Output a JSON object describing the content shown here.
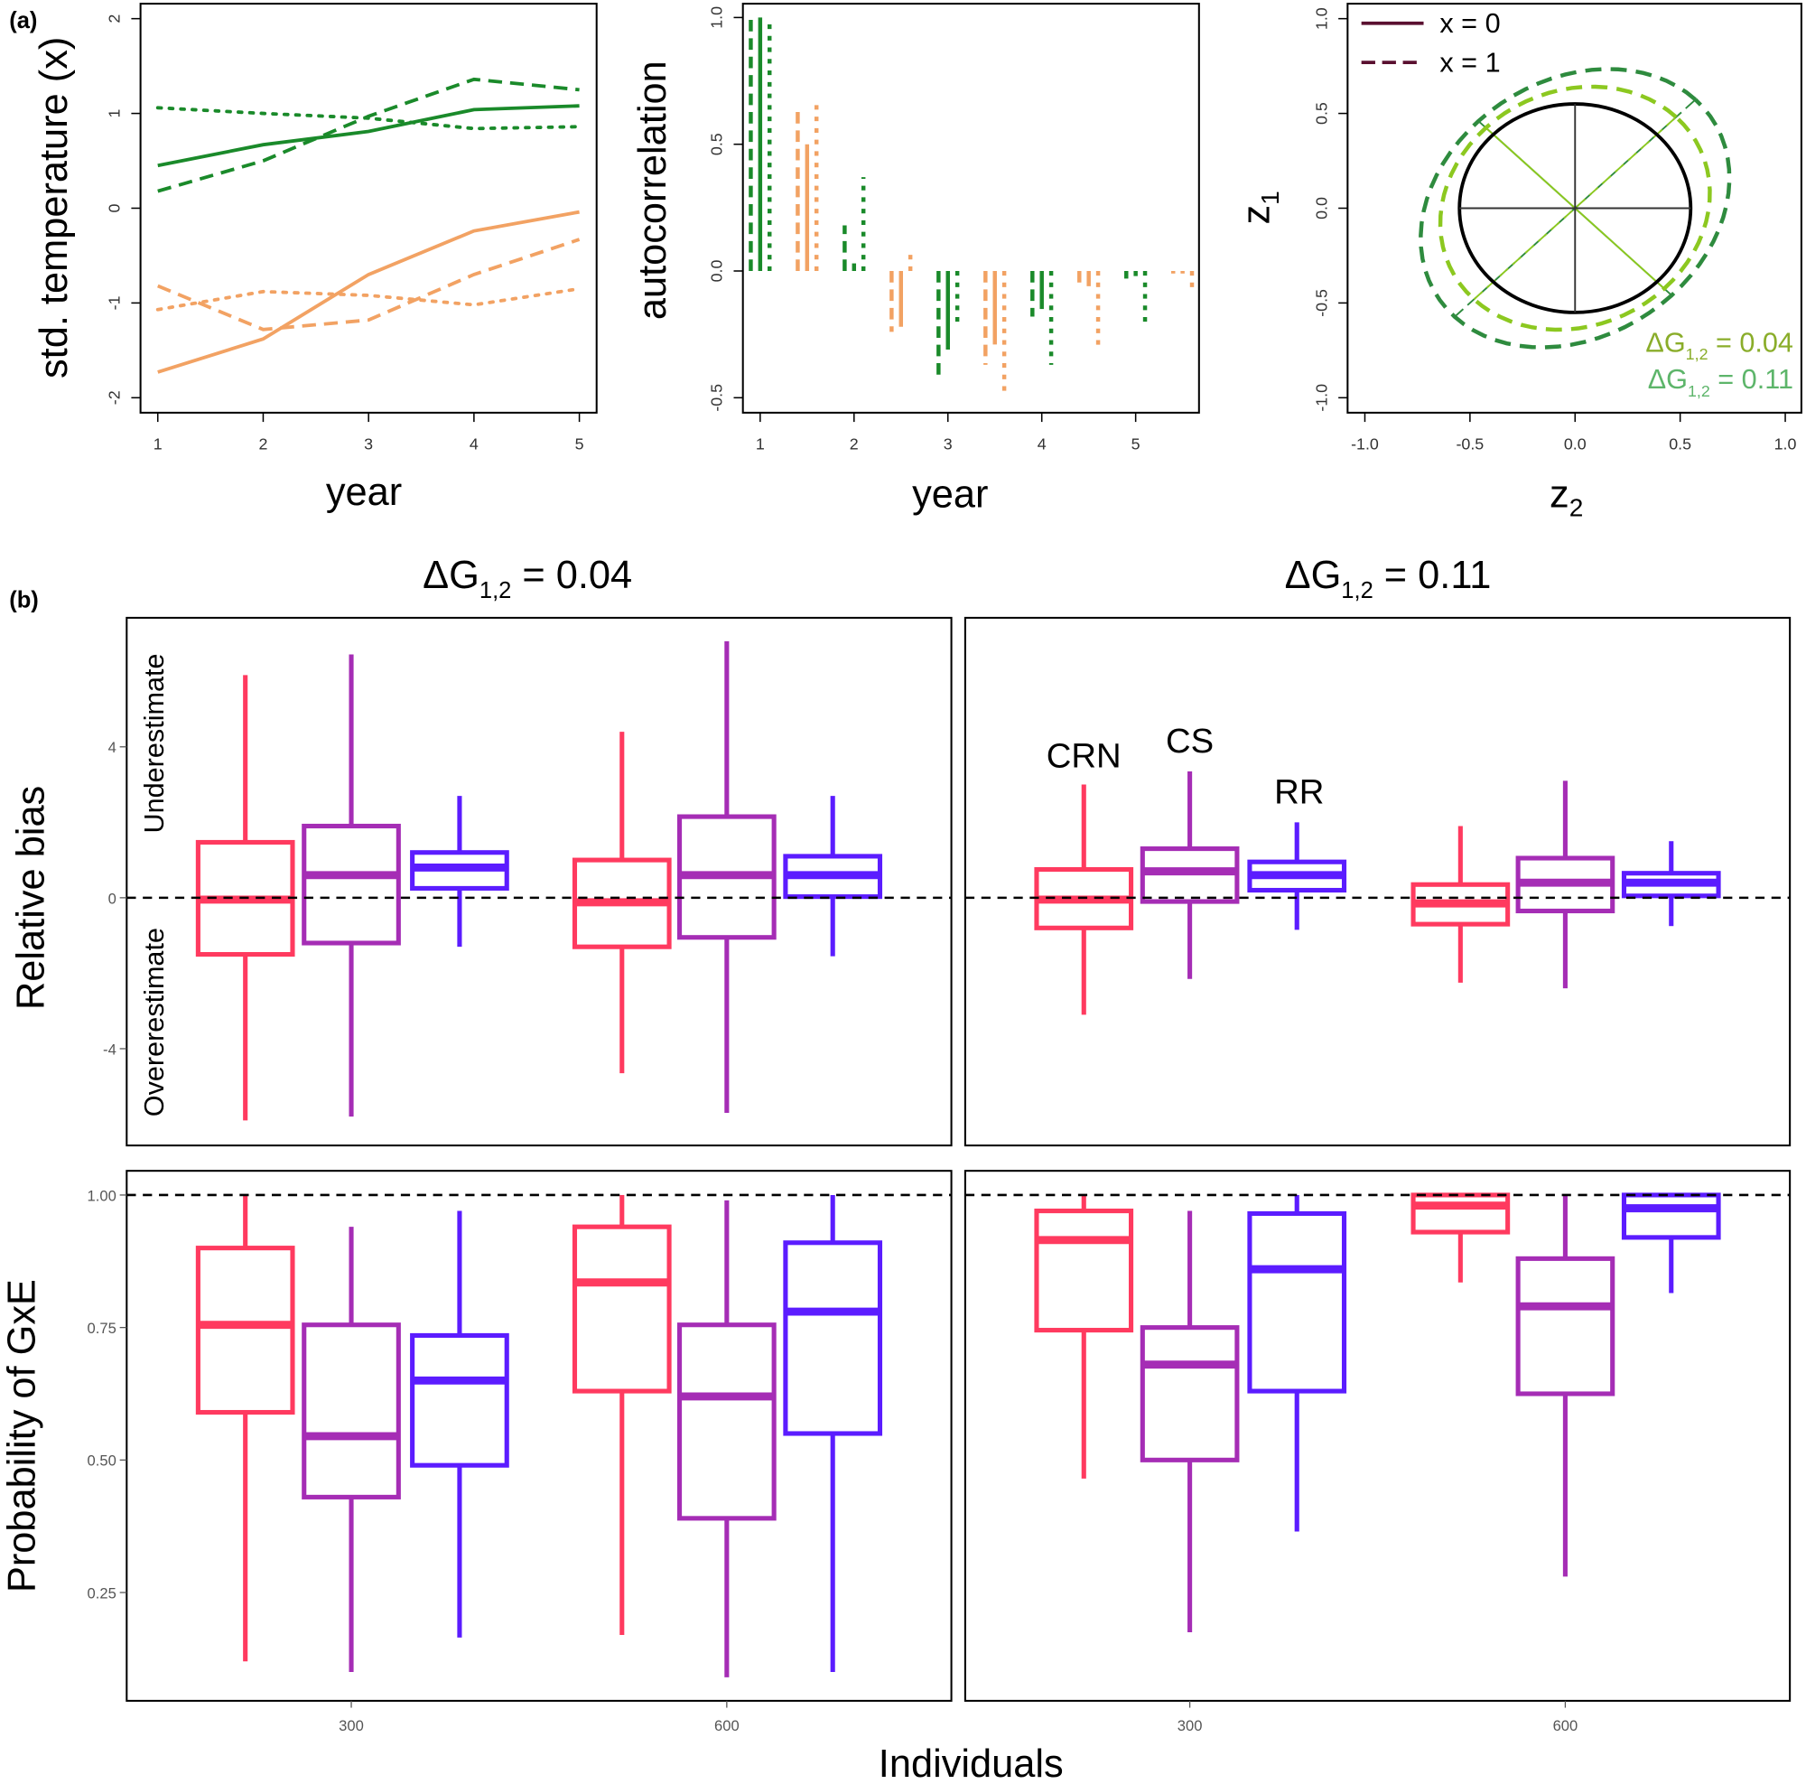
{
  "figure": {
    "panel_a_label": "(a)",
    "panel_b_label": "(b)"
  },
  "colors": {
    "warm": "#1a8a2a",
    "cold": "#f2a263",
    "CRN": "#ff3a5f",
    "CS": "#a52db5",
    "RR": "#5b1cff",
    "dG_004": "#8cc820",
    "dG_011": "#2e8b3e",
    "dG_004_text": "#8aad2a",
    "dG_011_text": "#5db56a",
    "legend_line": "#5a1030"
  },
  "chart_data": [
    {
      "type": "line",
      "ylabel": "std. temperature (x)",
      "xlabel": "year",
      "x": [
        1,
        2,
        3,
        4,
        5
      ],
      "xticks": [
        "1",
        "2",
        "3",
        "4",
        "5"
      ],
      "yticks": [
        "-2",
        "-1",
        "0",
        "1",
        "2"
      ],
      "ylim": [
        -2.25,
        2.2
      ],
      "series": [
        {
          "color": "warm",
          "linestyle": "solid",
          "values": [
            0.45,
            0.67,
            0.81,
            1.04,
            1.08
          ]
        },
        {
          "color": "warm",
          "linestyle": "dashed",
          "values": [
            0.18,
            0.5,
            0.97,
            1.36,
            1.25
          ]
        },
        {
          "color": "warm",
          "linestyle": "dotted",
          "values": [
            1.06,
            1.0,
            0.95,
            0.84,
            0.86
          ]
        },
        {
          "color": "cold",
          "linestyle": "solid",
          "values": [
            -1.73,
            -1.38,
            -0.7,
            -0.24,
            -0.04
          ]
        },
        {
          "color": "cold",
          "linestyle": "dashed",
          "values": [
            -0.82,
            -1.28,
            -1.18,
            -0.7,
            -0.33
          ]
        },
        {
          "color": "cold",
          "linestyle": "dotted",
          "values": [
            -1.07,
            -0.88,
            -0.92,
            -1.02,
            -0.85
          ]
        }
      ]
    },
    {
      "type": "bar",
      "ylabel": "autocorrelation",
      "xlabel": "year",
      "xticks": [
        "1",
        "2",
        "3",
        "4",
        "5"
      ],
      "yticks": [
        "-0.5",
        "0.0",
        "0.5",
        "1.0"
      ],
      "ylim": [
        -0.55,
        1.05
      ],
      "xlim": [
        0.82,
        5.68
      ],
      "lags": [
        {
          "x": 1.0,
          "color": "warm",
          "dashed": 1.0,
          "solid": 1.0,
          "dotted": 1.0
        },
        {
          "x": 1.5,
          "color": "cold",
          "dashed": 0.65,
          "solid": 0.5,
          "dotted": 0.67
        },
        {
          "x": 2.0,
          "color": "warm",
          "dashed": 0.18,
          "solid": 0.03,
          "dotted": 0.37
        },
        {
          "x": 2.5,
          "color": "cold",
          "dashed": -0.24,
          "solid": -0.22,
          "dotted": 0.08
        },
        {
          "x": 3.0,
          "color": "warm",
          "dashed": -0.41,
          "solid": -0.31,
          "dotted": -0.2
        },
        {
          "x": 3.5,
          "color": "cold",
          "dashed": -0.37,
          "solid": -0.29,
          "dotted": -0.49
        },
        {
          "x": 4.0,
          "color": "warm",
          "dashed": -0.18,
          "solid": -0.15,
          "dotted": -0.37
        },
        {
          "x": 4.5,
          "color": "cold",
          "dashed": -0.06,
          "solid": -0.06,
          "dotted": -0.31
        },
        {
          "x": 5.0,
          "color": "warm",
          "dashed": -0.03,
          "solid": -0.02,
          "dotted": -0.2
        },
        {
          "x": 5.5,
          "color": "cold",
          "dashed": -0.01,
          "solid": -0.01,
          "dotted": -0.08
        }
      ]
    },
    {
      "type": "scatter",
      "ylabel_main": "z",
      "ylabel_sub": "1",
      "xlabel_main": "z",
      "xlabel_sub": "2",
      "xticks": [
        "-1.0",
        "-0.5",
        "0.0",
        "0.5",
        "1.0"
      ],
      "yticks": [
        "-1.0",
        "-0.5",
        "0.0",
        "0.5",
        "1.0"
      ],
      "xlim": [
        -1.0,
        1.0
      ],
      "ylim": [
        -1.0,
        1.0
      ],
      "legend": [
        {
          "label": "x = 0",
          "linestyle": "solid"
        },
        {
          "label": "x = 1",
          "linestyle": "dashed"
        }
      ],
      "reference_circle": {
        "radius": 0.55
      },
      "ellipses": [
        {
          "color": "dG_011",
          "major": 0.81,
          "minor": 0.65,
          "angle_deg": 45,
          "label_prefix": "ΔG",
          "label_sub": "1,2",
          "label_suffix": " = 0.11",
          "text_color": "dG_011_text"
        },
        {
          "color": "dG_004",
          "major": 0.68,
          "minor": 0.6,
          "angle_deg": 45,
          "label_prefix": "ΔG",
          "label_sub": "1,2",
          "label_suffix": " = 0.04",
          "text_color": "dG_004_text"
        }
      ]
    },
    {
      "type": "boxplot",
      "xlabel": "Individuals",
      "categories": [
        "300",
        "600"
      ],
      "methods": [
        "CRN",
        "CS",
        "RR"
      ],
      "facets": [
        {
          "title_prefix": "ΔG",
          "title_sub": "1,2",
          "title_suffix": " = 0.04"
        },
        {
          "title_prefix": "ΔG",
          "title_sub": "1,2",
          "title_suffix": " = 0.11"
        }
      ],
      "stat_order": [
        "min",
        "q1",
        "median",
        "q3",
        "max"
      ],
      "rows": [
        {
          "ylabel": "Relative bias",
          "annotation_upper": "Underestimate",
          "annotation_lower": "Overerestimate",
          "yticks": [
            "-4",
            "0",
            "4"
          ],
          "ylim": [
            -6.5,
            7.4
          ],
          "reference_line": 0,
          "data": [
            {
              "300": {
                "CRN": [
                  -5.9,
                  -1.5,
                  -0.05,
                  1.47,
                  5.9
                ],
                "CS": [
                  -5.8,
                  -1.2,
                  0.6,
                  1.9,
                  6.45
                ],
                "RR": [
                  -1.3,
                  0.25,
                  0.8,
                  1.2,
                  2.7
                ]
              },
              "600": {
                "CRN": [
                  -4.65,
                  -1.3,
                  -0.12,
                  1.0,
                  4.4
                ],
                "CS": [
                  -5.7,
                  -1.05,
                  0.6,
                  2.15,
                  6.8
                ],
                "RR": [
                  -1.55,
                  0.03,
                  0.6,
                  1.1,
                  2.7
                ]
              }
            },
            {
              "300": {
                "CRN": [
                  -3.1,
                  -0.8,
                  -0.05,
                  0.75,
                  3.0
                ],
                "CS": [
                  -2.15,
                  -0.1,
                  0.7,
                  1.3,
                  3.35
                ],
                "RR": [
                  -0.85,
                  0.2,
                  0.6,
                  0.95,
                  2.0
                ]
              },
              "600": {
                "CRN": [
                  -2.25,
                  -0.7,
                  -0.15,
                  0.35,
                  1.9
                ],
                "CS": [
                  -2.4,
                  -0.35,
                  0.4,
                  1.05,
                  3.1
                ],
                "RR": [
                  -0.75,
                  0.05,
                  0.4,
                  0.65,
                  1.5
                ]
              }
            }
          ]
        },
        {
          "ylabel": "Probability of GxE",
          "yticks": [
            "0.25",
            "0.50",
            "0.75",
            "1.00"
          ],
          "ylim": [
            0.046,
            1.046
          ],
          "reference_line": 1.0,
          "data": [
            {
              "300": {
                "CRN": [
                  0.12,
                  0.59,
                  0.755,
                  0.9,
                  1.0
                ],
                "CS": [
                  0.1,
                  0.43,
                  0.545,
                  0.755,
                  0.94
                ],
                "RR": [
                  0.165,
                  0.49,
                  0.65,
                  0.735,
                  0.97
                ]
              },
              "600": {
                "CRN": [
                  0.17,
                  0.63,
                  0.835,
                  0.94,
                  1.0
                ],
                "CS": [
                  0.09,
                  0.39,
                  0.62,
                  0.755,
                  0.99
                ],
                "RR": [
                  0.1,
                  0.55,
                  0.78,
                  0.91,
                  1.0
                ]
              }
            },
            {
              "300": {
                "CRN": [
                  0.465,
                  0.745,
                  0.915,
                  0.97,
                  1.0
                ],
                "CS": [
                  0.175,
                  0.5,
                  0.68,
                  0.75,
                  0.97
                ],
                "RR": [
                  0.365,
                  0.63,
                  0.86,
                  0.965,
                  1.0
                ]
              },
              "600": {
                "CRN": [
                  0.835,
                  0.93,
                  0.98,
                  1.0,
                  1.0
                ],
                "CS": [
                  0.28,
                  0.625,
                  0.79,
                  0.88,
                  1.0
                ],
                "RR": [
                  0.815,
                  0.92,
                  0.975,
                  1.0,
                  1.0
                ]
              }
            }
          ]
        }
      ]
    }
  ]
}
